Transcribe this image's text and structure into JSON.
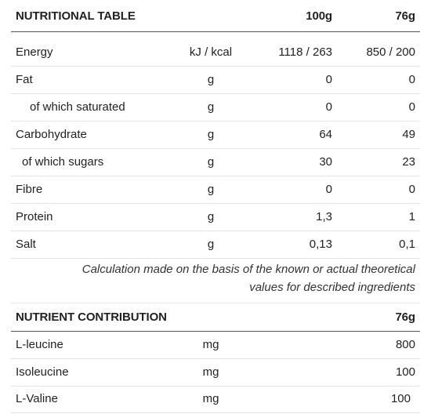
{
  "table": {
    "title": "NUTRITIONAL TABLE",
    "col_100g": "100g",
    "col_76g": "76g",
    "rows": [
      {
        "name": "Energy",
        "unit": "kJ / kcal",
        "v100": "1118 / 263",
        "v76": "850 / 200"
      },
      {
        "name": "Fat",
        "unit": "g",
        "v100": "0",
        "v76": "0"
      },
      {
        "name": "of which saturated",
        "unit": "g",
        "v100": "0",
        "v76": "0"
      },
      {
        "name": "Carbohydrate",
        "unit": "g",
        "v100": "64",
        "v76": "49"
      },
      {
        "name": "of which sugars",
        "unit": "g",
        "v100": "30",
        "v76": "23"
      },
      {
        "name": "Fibre",
        "unit": "g",
        "v100": "0",
        "v76": "0"
      },
      {
        "name": "Protein",
        "unit": "g",
        "v100": "1,3",
        "v76": "1"
      },
      {
        "name": "Salt",
        "unit": "g",
        "v100": "0,13",
        "v76": "0,1"
      }
    ],
    "note_line1": "Calculation made on the basis of the known or actual theoretical",
    "note_line2": "values for described ingredients"
  },
  "contribution": {
    "title": "NUTRIENT CONTRIBUTION",
    "col_76g": "76g",
    "rows": [
      {
        "name": "L-leucine",
        "unit": "mg",
        "v76": "800"
      },
      {
        "name": "Isoleucine",
        "unit": "mg",
        "v76": "100"
      },
      {
        "name": "L-Valine",
        "unit": "mg",
        "v76": "100"
      }
    ]
  }
}
